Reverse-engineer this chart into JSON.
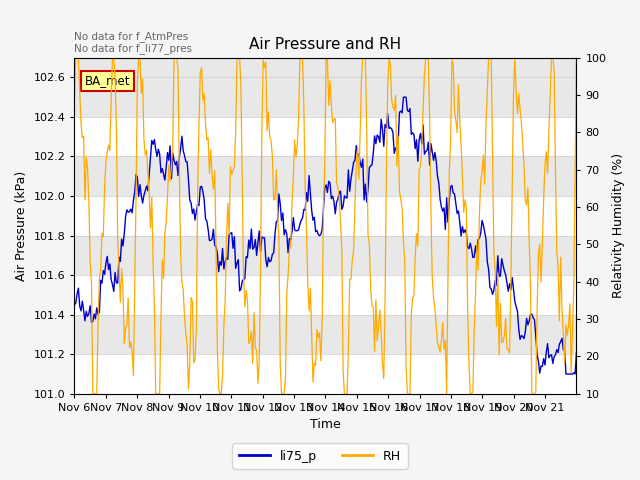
{
  "title": "Air Pressure and RH",
  "xlabel": "Time",
  "ylabel_left": "Air Pressure (kPa)",
  "ylabel_right": "Relativity Humidity (%)",
  "ylim_left": [
    101.0,
    102.7
  ],
  "ylim_right": [
    10,
    100
  ],
  "yticks_left": [
    101.0,
    101.2,
    101.4,
    101.6,
    101.8,
    102.0,
    102.2,
    102.4,
    102.6
  ],
  "yticks_right": [
    10,
    20,
    30,
    40,
    50,
    60,
    70,
    80,
    90,
    100
  ],
  "xtick_labels": [
    "Nov 6",
    "Nov 7",
    "Nov 8",
    "Nov 9",
    "Nov 10",
    "Nov 11",
    "Nov 12",
    "Nov 13",
    "Nov 14",
    "Nov 15",
    "Nov 16",
    "Nov 17",
    "Nov 18",
    "Nov 19",
    "Nov 20",
    "Nov 21"
  ],
  "annotation_text": "No data for f_AtmPres\nNo data for f_li77_pres",
  "box_label": "BA_met",
  "box_color": "#ffff99",
  "box_edge_color": "#cc0000",
  "line_li75p_color": "#0000cc",
  "line_RH_color": "#ffaa00",
  "legend_labels": [
    "li75_p",
    "RH"
  ],
  "plot_bg_color": "#e8e8e8",
  "band_color": "#ffffff",
  "fig_bg_color": "#f5f5f5",
  "annotation_color": "#666666",
  "title_fontsize": 11,
  "axis_fontsize": 8,
  "label_fontsize": 9,
  "tick_fontsize": 8
}
